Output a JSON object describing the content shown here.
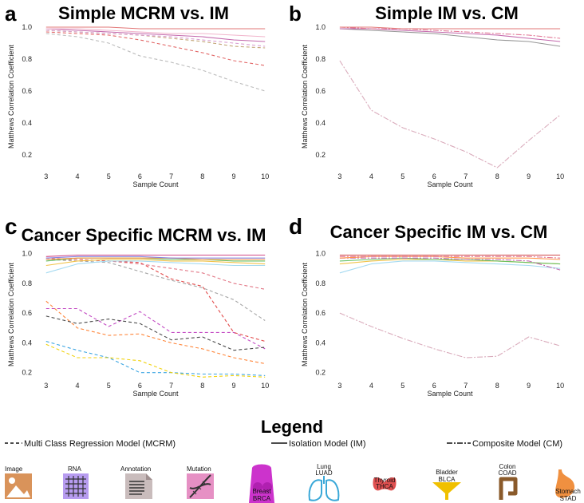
{
  "chart_data": [
    {
      "panel": "a",
      "type": "line",
      "title": "Simple MCRM vs. IM",
      "xlabel": "Sample Count",
      "ylabel": "Matthews Correlation Coefficient",
      "x": [
        3,
        4,
        5,
        6,
        7,
        8,
        9,
        10
      ],
      "xlim": [
        2.75,
        10.25
      ],
      "ylim": [
        0.1,
        1.03
      ],
      "yticks": [
        0.2,
        0.4,
        0.6,
        0.8,
        1.0
      ],
      "series": [
        {
          "model": "MCRM",
          "color": "#b8b8b8",
          "values": [
            0.96,
            0.94,
            0.9,
            0.82,
            0.78,
            0.73,
            0.66,
            0.6
          ]
        },
        {
          "model": "MCRM",
          "color": "#e06060",
          "values": [
            0.97,
            0.96,
            0.95,
            0.92,
            0.88,
            0.84,
            0.79,
            0.76
          ]
        },
        {
          "model": "MCRM",
          "color": "#c0a070",
          "values": [
            0.98,
            0.97,
            0.96,
            0.95,
            0.93,
            0.91,
            0.88,
            0.87
          ]
        },
        {
          "model": "MCRM",
          "color": "#d89ad0",
          "values": [
            0.98,
            0.97,
            0.96,
            0.95,
            0.94,
            0.92,
            0.9,
            0.88
          ]
        },
        {
          "model": "IM",
          "color": "#c060a8",
          "values": [
            0.99,
            0.98,
            0.97,
            0.96,
            0.95,
            0.94,
            0.92,
            0.91
          ]
        },
        {
          "model": "IM",
          "color": "#f0b0c8",
          "values": [
            0.99,
            0.99,
            0.98,
            0.97,
            0.96,
            0.96,
            0.95,
            0.94
          ]
        },
        {
          "model": "IM",
          "color": "#e07070",
          "values": [
            1.0,
            1.0,
            1.0,
            0.99,
            0.99,
            0.99,
            0.99,
            0.99
          ]
        }
      ]
    },
    {
      "panel": "b",
      "type": "line",
      "title": "Simple IM vs. CM",
      "xlabel": "Sample Count",
      "ylabel": "Matthews Correlation Coefficient",
      "x": [
        3,
        4,
        5,
        6,
        7,
        8,
        9,
        10
      ],
      "xlim": [
        2.75,
        10.25
      ],
      "ylim": [
        0.1,
        1.03
      ],
      "yticks": [
        0.2,
        0.4,
        0.6,
        0.8,
        1.0
      ],
      "series": [
        {
          "model": "CM",
          "color": "#d8a8b8",
          "values": [
            0.79,
            0.48,
            0.37,
            0.3,
            0.22,
            0.12,
            0.29,
            0.45
          ]
        },
        {
          "model": "IM",
          "color": "#909090",
          "values": [
            0.99,
            0.98,
            0.97,
            0.96,
            0.94,
            0.92,
            0.91,
            0.88
          ]
        },
        {
          "model": "IM",
          "color": "#c060a8",
          "values": [
            0.99,
            0.99,
            0.98,
            0.97,
            0.96,
            0.95,
            0.93,
            0.91
          ]
        },
        {
          "model": "CM",
          "color": "#e07090",
          "values": [
            1.0,
            0.99,
            0.99,
            0.98,
            0.97,
            0.96,
            0.95,
            0.93
          ]
        },
        {
          "model": "IM",
          "color": "#e07070",
          "values": [
            1.0,
            1.0,
            0.99,
            0.99,
            0.99,
            0.99,
            0.99,
            0.99
          ]
        }
      ]
    },
    {
      "panel": "c",
      "type": "line",
      "title": "Cancer Specific MCRM vs. IM",
      "xlabel": "Sample Count",
      "ylabel": "Matthews Correlation Coefficient",
      "x": [
        3,
        4,
        5,
        6,
        7,
        8,
        9,
        10
      ],
      "xlim": [
        2.75,
        10.25
      ],
      "ylim": [
        0.15,
        1.03
      ],
      "yticks": [
        0.2,
        0.4,
        0.6,
        0.8,
        1.0
      ],
      "series": [
        {
          "model": "MCRM",
          "color": "#c040c0",
          "values": [
            0.63,
            0.63,
            0.51,
            0.61,
            0.47,
            0.47,
            0.47,
            0.36
          ]
        },
        {
          "model": "MCRM",
          "color": "#ff8030",
          "values": [
            0.68,
            0.5,
            0.45,
            0.46,
            0.4,
            0.36,
            0.3,
            0.26
          ]
        },
        {
          "model": "MCRM",
          "color": "#404040",
          "values": [
            0.58,
            0.53,
            0.56,
            0.53,
            0.42,
            0.44,
            0.35,
            0.37
          ]
        },
        {
          "model": "MCRM",
          "color": "#30a0e0",
          "values": [
            0.41,
            0.35,
            0.3,
            0.2,
            0.2,
            0.19,
            0.19,
            0.18
          ]
        },
        {
          "model": "MCRM",
          "color": "#f0d000",
          "values": [
            0.39,
            0.3,
            0.3,
            0.28,
            0.2,
            0.17,
            0.18,
            0.17
          ]
        },
        {
          "model": "MCRM",
          "color": "#e04040",
          "values": [
            0.96,
            0.96,
            0.95,
            0.94,
            0.83,
            0.78,
            0.47,
            0.41
          ]
        },
        {
          "model": "MCRM",
          "color": "#a0a0a0",
          "values": [
            0.96,
            0.95,
            0.94,
            0.88,
            0.82,
            0.77,
            0.69,
            0.55
          ]
        },
        {
          "model": "MCRM",
          "color": "#e07080",
          "values": [
            0.97,
            0.96,
            0.95,
            0.93,
            0.9,
            0.87,
            0.8,
            0.76
          ]
        },
        {
          "model": "IM",
          "color": "#a0d8f0",
          "values": [
            0.87,
            0.93,
            0.95,
            0.95,
            0.94,
            0.93,
            0.92,
            0.92
          ]
        },
        {
          "model": "IM",
          "color": "#f0c040",
          "values": [
            0.92,
            0.95,
            0.96,
            0.96,
            0.95,
            0.95,
            0.94,
            0.93
          ]
        },
        {
          "model": "IM",
          "color": "#60c060",
          "values": [
            0.95,
            0.97,
            0.97,
            0.97,
            0.96,
            0.96,
            0.95,
            0.95
          ]
        },
        {
          "model": "IM",
          "color": "#ff9040",
          "values": [
            0.96,
            0.97,
            0.97,
            0.97,
            0.97,
            0.96,
            0.96,
            0.96
          ]
        },
        {
          "model": "IM",
          "color": "#8080e0",
          "values": [
            0.97,
            0.98,
            0.98,
            0.98,
            0.97,
            0.97,
            0.97,
            0.97
          ]
        },
        {
          "model": "IM",
          "color": "#d04080",
          "values": [
            0.98,
            0.99,
            0.99,
            0.99,
            0.99,
            0.99,
            0.99,
            0.99
          ]
        }
      ]
    },
    {
      "panel": "d",
      "type": "line",
      "title": "Cancer Specific IM vs. CM",
      "xlabel": "Sample Count",
      "ylabel": "Matthews Correlation Coefficient",
      "x": [
        3,
        4,
        5,
        6,
        7,
        8,
        9,
        10
      ],
      "xlim": [
        2.75,
        10.25
      ],
      "ylim": [
        0.15,
        1.03
      ],
      "yticks": [
        0.2,
        0.4,
        0.6,
        0.8,
        1.0
      ],
      "series": [
        {
          "model": "CM",
          "color": "#d8a8b8",
          "values": [
            0.6,
            0.51,
            0.43,
            0.36,
            0.3,
            0.31,
            0.44,
            0.38
          ]
        },
        {
          "model": "IM",
          "color": "#a0d8f0",
          "values": [
            0.87,
            0.93,
            0.95,
            0.95,
            0.94,
            0.93,
            0.92,
            0.9
          ]
        },
        {
          "model": "IM",
          "color": "#f0c040",
          "values": [
            0.93,
            0.95,
            0.96,
            0.96,
            0.95,
            0.95,
            0.94,
            0.93
          ]
        },
        {
          "model": "IM",
          "color": "#60c060",
          "values": [
            0.95,
            0.96,
            0.97,
            0.96,
            0.96,
            0.95,
            0.94,
            0.93
          ]
        },
        {
          "model": "CM",
          "color": "#c060a8",
          "values": [
            0.97,
            0.97,
            0.97,
            0.97,
            0.96,
            0.96,
            0.95,
            0.89
          ]
        },
        {
          "model": "IM",
          "color": "#ff9040",
          "values": [
            0.97,
            0.98,
            0.98,
            0.98,
            0.97,
            0.97,
            0.97,
            0.96
          ]
        },
        {
          "model": "CM",
          "color": "#e07090",
          "values": [
            0.98,
            0.98,
            0.98,
            0.98,
            0.98,
            0.98,
            0.98,
            0.97
          ]
        },
        {
          "model": "IM",
          "color": "#d04040",
          "values": [
            0.99,
            0.99,
            0.99,
            0.99,
            0.99,
            0.99,
            0.99,
            0.99
          ]
        }
      ]
    }
  ],
  "legend": {
    "title": "Legend",
    "mcrm": "Multi Class Regression Model (MCRM)",
    "im": "Isolation Model (IM)",
    "cm": "Composite Model (CM)"
  },
  "modalities": {
    "image": "Image",
    "rna": "RNA",
    "annotation": "Annotation",
    "mutation": "Mutation"
  },
  "cancers": {
    "brca": [
      "Breast",
      "BRCA"
    ],
    "luad": [
      "Lung",
      "LUAD"
    ],
    "thca": [
      "Thyroid",
      "THCA"
    ],
    "blca": [
      "Bladder",
      "BLCA"
    ],
    "coad": [
      "Colon",
      "COAD"
    ],
    "stad": [
      "Stomach",
      "STAD"
    ]
  },
  "colors": {
    "image_bg": "#d9935a",
    "rna_bg": "#b79cf0",
    "annotation_bg": "#c9bcbc",
    "mutation_bg": "#e690c4",
    "breast": "#cc33cc",
    "lung": "#3aa8d8",
    "thyroid": "#e05050",
    "bladder": "#f0c000",
    "colon": "#8a5a2a",
    "stomach": "#f09040"
  }
}
